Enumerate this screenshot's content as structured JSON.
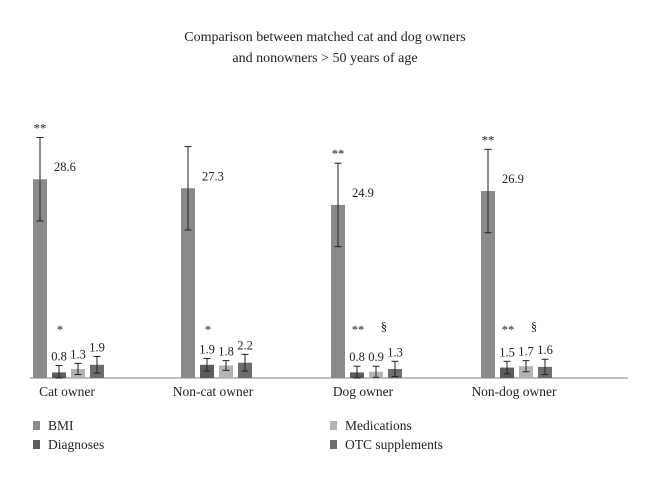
{
  "chart_data": {
    "type": "bar",
    "title": [
      "Comparison between matched cat and dog owners",
      "and nonowners > 50 years of age"
    ],
    "categories": [
      "Cat owner",
      "Non-cat owner",
      "Dog owner",
      "Non-dog owner"
    ],
    "ylim": [
      0,
      40
    ],
    "grid": false,
    "legend_placement": "bottom",
    "series": [
      {
        "name": "BMI",
        "color": "#8a8a8a",
        "values": [
          28.6,
          27.3,
          24.9,
          26.9
        ],
        "error": [
          6.0,
          6.0,
          6.0,
          6.0
        ],
        "labels": [
          "28.6",
          "27.3",
          "24.9",
          "26.9"
        ],
        "sig": [
          "**",
          "",
          "**",
          "**"
        ]
      },
      {
        "name": "Diagnoses",
        "color": "#5c5c5c",
        "values": [
          0.8,
          1.9,
          0.8,
          1.5
        ],
        "error": [
          1.0,
          0.9,
          0.9,
          0.9
        ],
        "labels": [
          "0.8",
          "1.9",
          "0.8",
          "1.5"
        ],
        "sig": [
          "*",
          "*",
          "**",
          "**"
        ]
      },
      {
        "name": "Medications",
        "color": "#b3b3b3",
        "values": [
          1.3,
          1.8,
          0.9,
          1.7
        ],
        "error": [
          0.8,
          0.7,
          0.8,
          0.8
        ],
        "labels": [
          "1.3",
          "1.8",
          "0.9",
          "1.7"
        ],
        "sig": [
          "",
          "",
          "§",
          "§"
        ]
      },
      {
        "name": "OTC supplements",
        "color": "#6e6e6e",
        "values": [
          1.9,
          2.2,
          1.3,
          1.6
        ],
        "error": [
          1.2,
          1.2,
          1.1,
          1.1
        ],
        "labels": [
          "1.9",
          "2.2",
          "1.3",
          "1.6"
        ],
        "sig": [
          "",
          "",
          "",
          ""
        ]
      }
    ]
  }
}
